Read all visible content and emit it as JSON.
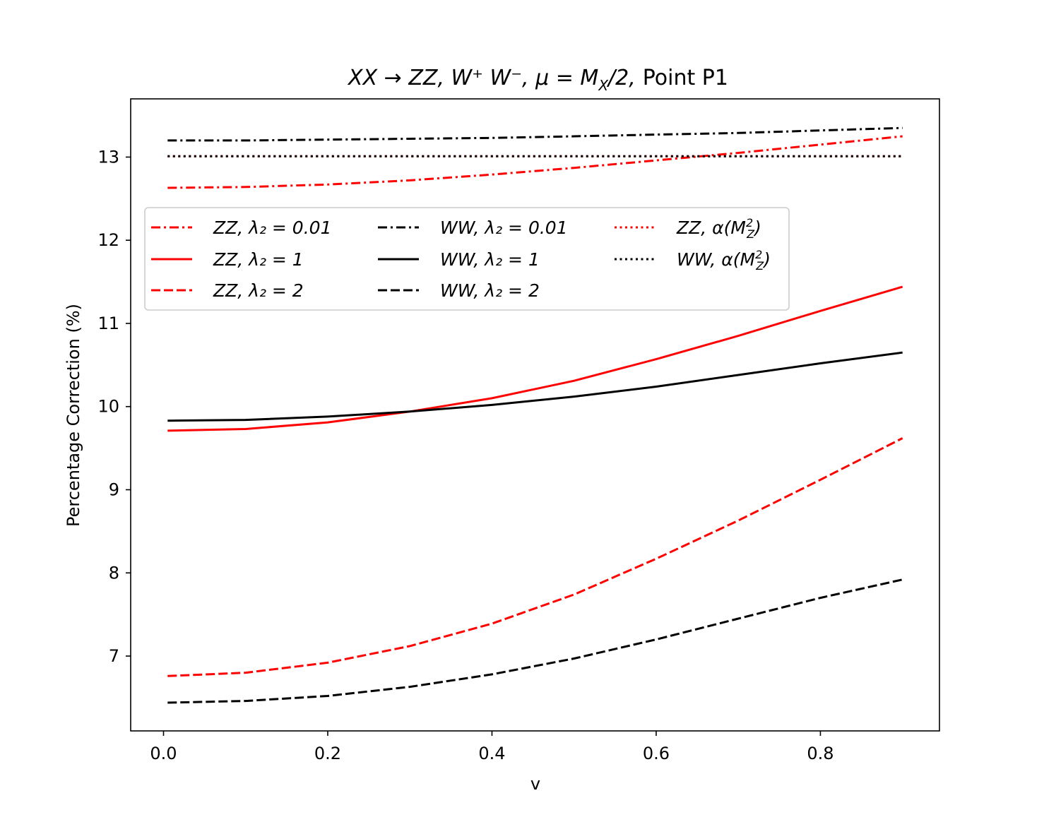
{
  "chart_data": {
    "type": "line",
    "title": "XX→ZZ, W⁺W⁻, μ = Mₓ/2, Point P1",
    "title_parts": {
      "formula": "XX → ZZ, W⁺ W⁻, μ = M",
      "subscript": "X",
      "after": "/2,",
      "plain": "Point P1"
    },
    "xlabel": "v",
    "ylabel": "Percentage Correction (%)",
    "xlim": [
      -0.04,
      0.945
    ],
    "ylim": [
      6.1,
      13.7
    ],
    "xticks": [
      0.0,
      0.2,
      0.4,
      0.6,
      0.8
    ],
    "xtick_labels": [
      "0.0",
      "0.2",
      "0.4",
      "0.6",
      "0.8"
    ],
    "yticks": [
      7,
      8,
      9,
      10,
      11,
      12,
      13
    ],
    "ytick_labels": [
      "7",
      "8",
      "9",
      "10",
      "11",
      "12",
      "13"
    ],
    "grid": false,
    "legend_position": "upper-left",
    "series": [
      {
        "id": "zz-l001",
        "name": "ZZ, λ₂ = 0.01",
        "legend_label": "ZZ, λ₂ = 0.01",
        "color": "#ff0000",
        "style": "dashdot",
        "x": [
          0.005,
          0.1,
          0.2,
          0.3,
          0.4,
          0.5,
          0.6,
          0.7,
          0.8,
          0.9
        ],
        "y": [
          12.63,
          12.64,
          12.67,
          12.72,
          12.79,
          12.87,
          12.96,
          13.05,
          13.15,
          13.25
        ]
      },
      {
        "id": "zz-l1",
        "name": "ZZ, λ₂ = 1",
        "legend_label": "ZZ, λ₂ = 1",
        "color": "#ff0000",
        "style": "solid",
        "x": [
          0.005,
          0.1,
          0.2,
          0.3,
          0.4,
          0.5,
          0.6,
          0.7,
          0.8,
          0.9
        ],
        "y": [
          9.71,
          9.73,
          9.81,
          9.94,
          10.1,
          10.31,
          10.57,
          10.85,
          11.15,
          11.44
        ]
      },
      {
        "id": "zz-l2",
        "name": "ZZ, λ₂ = 2",
        "legend_label": "ZZ, λ₂ = 2",
        "color": "#ff0000",
        "style": "dashed",
        "x": [
          0.005,
          0.1,
          0.2,
          0.3,
          0.4,
          0.5,
          0.6,
          0.7,
          0.8,
          0.9
        ],
        "y": [
          6.76,
          6.8,
          6.92,
          7.12,
          7.39,
          7.74,
          8.17,
          8.63,
          9.12,
          9.62
        ]
      },
      {
        "id": "ww-l001",
        "name": "WW, λ₂ = 0.01",
        "legend_label": "WW, λ₂ = 0.01",
        "color": "#000000",
        "style": "dashdot",
        "x": [
          0.005,
          0.1,
          0.2,
          0.3,
          0.4,
          0.5,
          0.6,
          0.7,
          0.8,
          0.9
        ],
        "y": [
          13.2,
          13.2,
          13.21,
          13.22,
          13.23,
          13.25,
          13.27,
          13.29,
          13.32,
          13.35
        ]
      },
      {
        "id": "ww-l1",
        "name": "WW, λ₂ = 1",
        "legend_label": "WW, λ₂ = 1",
        "color": "#000000",
        "style": "solid",
        "x": [
          0.005,
          0.1,
          0.2,
          0.3,
          0.4,
          0.5,
          0.6,
          0.7,
          0.8,
          0.9
        ],
        "y": [
          9.83,
          9.84,
          9.88,
          9.94,
          10.02,
          10.12,
          10.24,
          10.38,
          10.52,
          10.65
        ]
      },
      {
        "id": "ww-l2",
        "name": "WW, λ₂ = 2",
        "legend_label": "WW, λ₂ = 2",
        "color": "#000000",
        "style": "dashed",
        "x": [
          0.005,
          0.1,
          0.2,
          0.3,
          0.4,
          0.5,
          0.6,
          0.7,
          0.8,
          0.9
        ],
        "y": [
          6.44,
          6.46,
          6.52,
          6.63,
          6.78,
          6.97,
          7.2,
          7.45,
          7.7,
          7.92
        ]
      },
      {
        "id": "zz-alpha",
        "name": "ZZ, α(M²_Z)",
        "legend_label": "ZZ, α(M",
        "color": "#ff0000",
        "style": "dotted",
        "x": [
          0.005,
          0.9
        ],
        "y": [
          13.01,
          13.01
        ]
      },
      {
        "id": "ww-alpha",
        "name": "WW, α(M²_Z)",
        "legend_label": "WW, α(M",
        "color": "#000000",
        "style": "dotted",
        "x": [
          0.005,
          0.9
        ],
        "y": [
          13.01,
          13.01
        ]
      }
    ],
    "legend_rows": [
      [
        "zz-l001",
        "ww-l001",
        "zz-alpha"
      ],
      [
        "zz-l1",
        "ww-l1",
        "ww-alpha"
      ],
      [
        "zz-l2",
        "ww-l2",
        null
      ]
    ],
    "colors": {
      "red": "#ff0000",
      "black": "#000000"
    }
  }
}
